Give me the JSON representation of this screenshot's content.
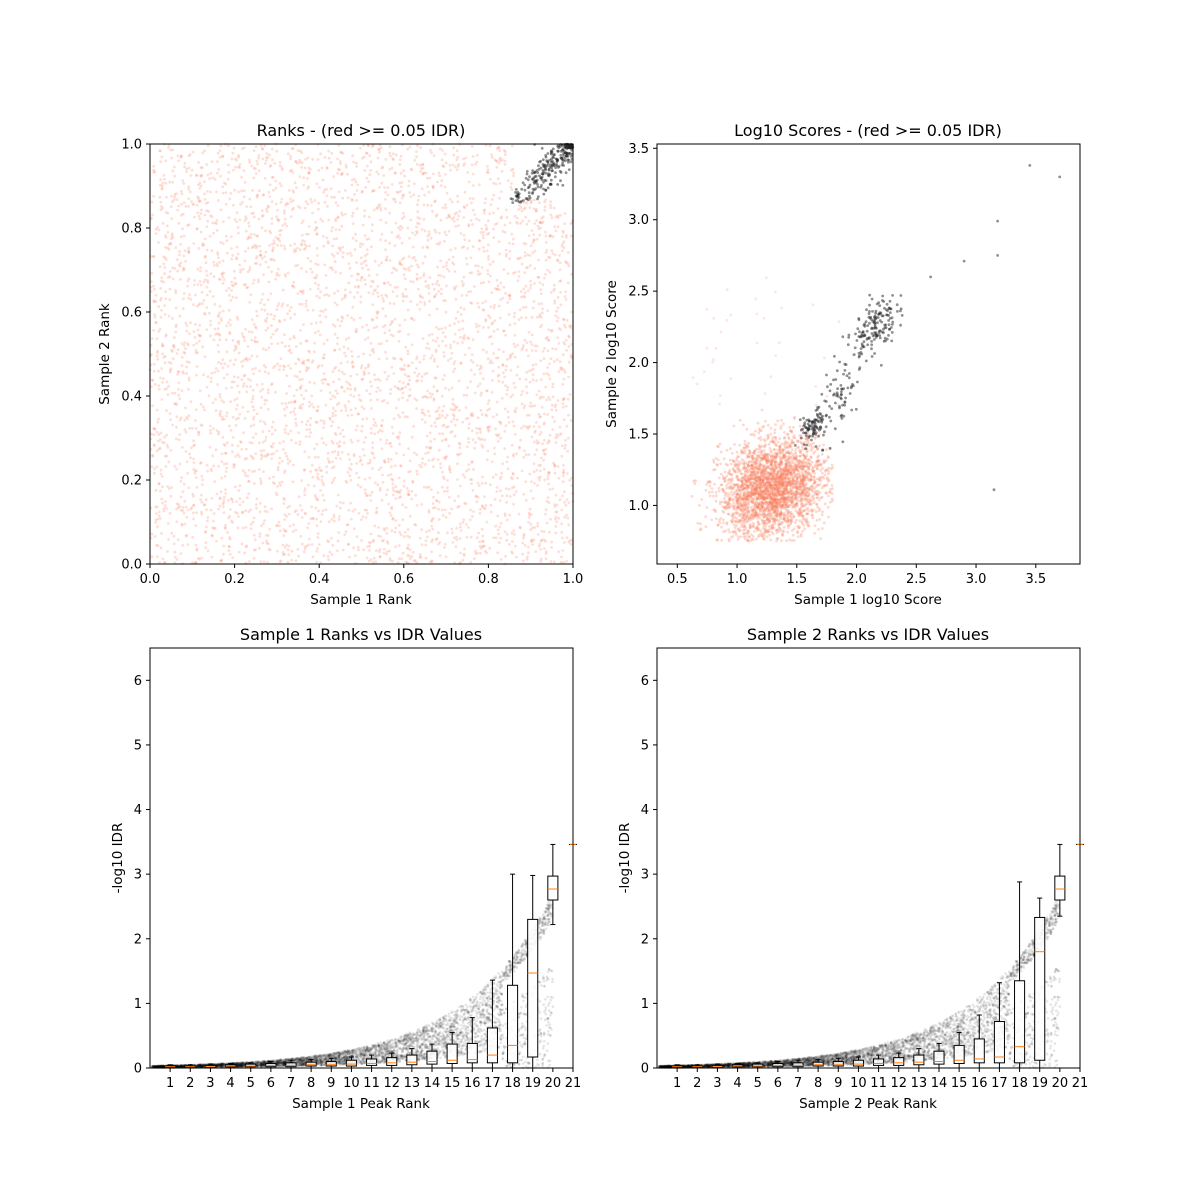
{
  "chart_data": [
    {
      "type": "scatter",
      "title": "Ranks - (red >= 0.05 IDR)",
      "xlabel": "Sample 1 Rank",
      "ylabel": "Sample 2 Rank",
      "xlim": [
        0.0,
        1.0
      ],
      "ylim": [
        0.0,
        1.0
      ],
      "xticks": [
        "0.0",
        "0.2",
        "0.4",
        "0.6",
        "0.8",
        "1.0"
      ],
      "yticks": [
        "0.0",
        "0.2",
        "0.4",
        "0.6",
        "0.8",
        "1.0"
      ],
      "grid": false,
      "series": [
        {
          "color": "#fa8060",
          "alpha": 0.25,
          "description_ref": "uniform over [0,1]x[0,1], ~5000 points",
          "points_generated": {
            "n": 4200,
            "x_range": [
              0.0,
              1.0
            ],
            "y_range": [
              0.0,
              1.0
            ]
          }
        },
        {
          "color": "#222222",
          "alpha": 0.5,
          "points_generated": {
            "n": 260,
            "x_center": 0.93,
            "y_center": 0.93,
            "x_range": [
              0.85,
              1.0
            ],
            "y_range": [
              0.86,
              1.0
            ]
          }
        }
      ]
    },
    {
      "type": "scatter",
      "title": "Log10 Scores - (red >= 0.05 IDR)",
      "xlabel": "Sample 1 log10 Score",
      "ylabel": "Sample 2 log10 Score",
      "xlim": [
        0.33,
        3.87
      ],
      "ylim": [
        0.59,
        3.53
      ],
      "xticks": [
        0.5,
        1.0,
        1.5,
        2.0,
        2.5,
        3.0,
        3.5
      ],
      "yticks": [
        1.0,
        1.5,
        2.0,
        2.5,
        3.0,
        3.5
      ],
      "grid": false,
      "series": [
        {
          "color": "#fa8060",
          "alpha": 0.3,
          "points_generated": {
            "n": 2800,
            "x_mean": 1.3,
            "x_sd": 0.22,
            "y_mean": 1.12,
            "y_sd": 0.17,
            "x_range": [
              0.48,
              1.8
            ],
            "y_range": [
              0.75,
              1.68
            ]
          }
        },
        {
          "color": "#222222",
          "alpha": 0.5,
          "clusters": [
            {
              "n": 160,
              "x_mean": 2.15,
              "x_sd": 0.09,
              "y_mean": 2.25,
              "y_sd": 0.1
            },
            {
              "n": 80,
              "x_mean": 1.63,
              "x_sd": 0.05,
              "y_mean": 1.55,
              "y_sd": 0.05
            },
            {
              "n": 80,
              "x_mean": 1.85,
              "x_sd": 0.1,
              "y_mean": 1.75,
              "y_sd": 0.12
            }
          ],
          "outliers": [
            [
              3.45,
              3.38
            ],
            [
              3.7,
              3.3
            ],
            [
              3.18,
              2.99
            ],
            [
              3.18,
              2.75
            ],
            [
              2.9,
              2.71
            ],
            [
              2.62,
              2.6
            ],
            [
              3.15,
              1.11
            ]
          ]
        }
      ]
    },
    {
      "type": "box",
      "title": "Sample 1 Ranks vs IDR Values",
      "xlabel": "Sample 1 Peak Rank",
      "ylabel": "-log10 IDR",
      "xlim": [
        0,
        21
      ],
      "ylim": [
        0,
        6.5
      ],
      "xticks": [
        "1",
        "2",
        "3",
        "4",
        "5",
        "6",
        "7",
        "8",
        "9",
        "10",
        "11",
        "12",
        "13",
        "14",
        "15",
        "16",
        "17",
        "18",
        "19",
        "20",
        "21"
      ],
      "yticks": [
        0,
        1,
        2,
        3,
        4,
        5,
        6
      ],
      "boxes": [
        {
          "pos": 1,
          "q1": 0.01,
          "med": 0.02,
          "q3": 0.03,
          "lo": 0.0,
          "hi": 0.05
        },
        {
          "pos": 2,
          "q1": 0.01,
          "med": 0.02,
          "q3": 0.03,
          "lo": 0.0,
          "hi": 0.05
        },
        {
          "pos": 3,
          "q1": 0.01,
          "med": 0.02,
          "q3": 0.04,
          "lo": 0.0,
          "hi": 0.06
        },
        {
          "pos": 4,
          "q1": 0.02,
          "med": 0.03,
          "q3": 0.05,
          "lo": 0.0,
          "hi": 0.07
        },
        {
          "pos": 5,
          "q1": 0.02,
          "med": 0.03,
          "q3": 0.06,
          "lo": 0.0,
          "hi": 0.08
        },
        {
          "pos": 6,
          "q1": 0.02,
          "med": 0.04,
          "q3": 0.07,
          "lo": 0.0,
          "hi": 0.1
        },
        {
          "pos": 7,
          "q1": 0.02,
          "med": 0.04,
          "q3": 0.08,
          "lo": 0.0,
          "hi": 0.12
        },
        {
          "pos": 8,
          "q1": 0.03,
          "med": 0.05,
          "q3": 0.09,
          "lo": 0.0,
          "hi": 0.13
        },
        {
          "pos": 9,
          "q1": 0.03,
          "med": 0.05,
          "q3": 0.1,
          "lo": 0.0,
          "hi": 0.15
        },
        {
          "pos": 10,
          "q1": 0.03,
          "med": 0.06,
          "q3": 0.12,
          "lo": 0.0,
          "hi": 0.17
        },
        {
          "pos": 11,
          "q1": 0.04,
          "med": 0.07,
          "q3": 0.14,
          "lo": 0.0,
          "hi": 0.2
        },
        {
          "pos": 12,
          "q1": 0.04,
          "med": 0.08,
          "q3": 0.16,
          "lo": 0.0,
          "hi": 0.23
        },
        {
          "pos": 13,
          "q1": 0.05,
          "med": 0.09,
          "q3": 0.2,
          "lo": 0.0,
          "hi": 0.3
        },
        {
          "pos": 14,
          "q1": 0.06,
          "med": 0.1,
          "q3": 0.26,
          "lo": 0.0,
          "hi": 0.37
        },
        {
          "pos": 15,
          "q1": 0.07,
          "med": 0.12,
          "q3": 0.37,
          "lo": 0.0,
          "hi": 0.55
        },
        {
          "pos": 16,
          "q1": 0.08,
          "med": 0.13,
          "q3": 0.38,
          "lo": 0.0,
          "hi": 0.78
        },
        {
          "pos": 17,
          "q1": 0.08,
          "med": 0.2,
          "q3": 0.62,
          "lo": 0.0,
          "hi": 1.36
        },
        {
          "pos": 18,
          "q1": 0.08,
          "med": 0.35,
          "q3": 1.28,
          "lo": 0.0,
          "hi": 3.0
        },
        {
          "pos": 19,
          "q1": 0.17,
          "med": 1.47,
          "q3": 2.3,
          "lo": 0.0,
          "hi": 2.98
        },
        {
          "pos": 20,
          "q1": 2.6,
          "med": 2.77,
          "q3": 2.97,
          "lo": 2.22,
          "hi": 3.46
        }
      ],
      "flier": {
        "x": 21,
        "y": 3.46
      },
      "points_generated": {
        "n": 5200,
        "color": "#000000",
        "alpha": 0.1
      }
    },
    {
      "type": "box",
      "title": "Sample 2 Ranks vs IDR Values",
      "xlabel": "Sample 2 Peak Rank",
      "ylabel": "-log10 IDR",
      "xlim": [
        0,
        21
      ],
      "ylim": [
        0,
        6.5
      ],
      "xticks": [
        "1",
        "2",
        "3",
        "4",
        "5",
        "6",
        "7",
        "8",
        "9",
        "10",
        "11",
        "12",
        "13",
        "14",
        "15",
        "16",
        "17",
        "18",
        "19",
        "20",
        "21"
      ],
      "yticks": [
        0,
        1,
        2,
        3,
        4,
        5,
        6
      ],
      "boxes": [
        {
          "pos": 1,
          "q1": 0.01,
          "med": 0.02,
          "q3": 0.03,
          "lo": 0.0,
          "hi": 0.05
        },
        {
          "pos": 2,
          "q1": 0.01,
          "med": 0.02,
          "q3": 0.03,
          "lo": 0.0,
          "hi": 0.05
        },
        {
          "pos": 3,
          "q1": 0.01,
          "med": 0.02,
          "q3": 0.04,
          "lo": 0.0,
          "hi": 0.06
        },
        {
          "pos": 4,
          "q1": 0.02,
          "med": 0.03,
          "q3": 0.05,
          "lo": 0.0,
          "hi": 0.07
        },
        {
          "pos": 5,
          "q1": 0.02,
          "med": 0.03,
          "q3": 0.06,
          "lo": 0.0,
          "hi": 0.08
        },
        {
          "pos": 6,
          "q1": 0.02,
          "med": 0.04,
          "q3": 0.07,
          "lo": 0.0,
          "hi": 0.1
        },
        {
          "pos": 7,
          "q1": 0.02,
          "med": 0.04,
          "q3": 0.08,
          "lo": 0.0,
          "hi": 0.12
        },
        {
          "pos": 8,
          "q1": 0.03,
          "med": 0.05,
          "q3": 0.09,
          "lo": 0.0,
          "hi": 0.13
        },
        {
          "pos": 9,
          "q1": 0.03,
          "med": 0.05,
          "q3": 0.1,
          "lo": 0.0,
          "hi": 0.15
        },
        {
          "pos": 10,
          "q1": 0.03,
          "med": 0.06,
          "q3": 0.12,
          "lo": 0.0,
          "hi": 0.17
        },
        {
          "pos": 11,
          "q1": 0.04,
          "med": 0.07,
          "q3": 0.14,
          "lo": 0.0,
          "hi": 0.2
        },
        {
          "pos": 12,
          "q1": 0.04,
          "med": 0.08,
          "q3": 0.16,
          "lo": 0.0,
          "hi": 0.23
        },
        {
          "pos": 13,
          "q1": 0.05,
          "med": 0.09,
          "q3": 0.2,
          "lo": 0.0,
          "hi": 0.3
        },
        {
          "pos": 14,
          "q1": 0.06,
          "med": 0.1,
          "q3": 0.26,
          "lo": 0.0,
          "hi": 0.38
        },
        {
          "pos": 15,
          "q1": 0.07,
          "med": 0.12,
          "q3": 0.35,
          "lo": 0.0,
          "hi": 0.55
        },
        {
          "pos": 16,
          "q1": 0.08,
          "med": 0.14,
          "q3": 0.45,
          "lo": 0.0,
          "hi": 0.82
        },
        {
          "pos": 17,
          "q1": 0.08,
          "med": 0.17,
          "q3": 0.72,
          "lo": 0.0,
          "hi": 1.32
        },
        {
          "pos": 18,
          "q1": 0.08,
          "med": 0.33,
          "q3": 1.35,
          "lo": 0.0,
          "hi": 2.88
        },
        {
          "pos": 19,
          "q1": 0.12,
          "med": 1.8,
          "q3": 2.33,
          "lo": 0.0,
          "hi": 2.63
        },
        {
          "pos": 20,
          "q1": 2.6,
          "med": 2.77,
          "q3": 2.97,
          "lo": 2.35,
          "hi": 3.46
        }
      ],
      "flier": {
        "x": 21,
        "y": 3.46
      },
      "points_generated": {
        "n": 5200,
        "color": "#000000",
        "alpha": 0.1
      }
    }
  ]
}
